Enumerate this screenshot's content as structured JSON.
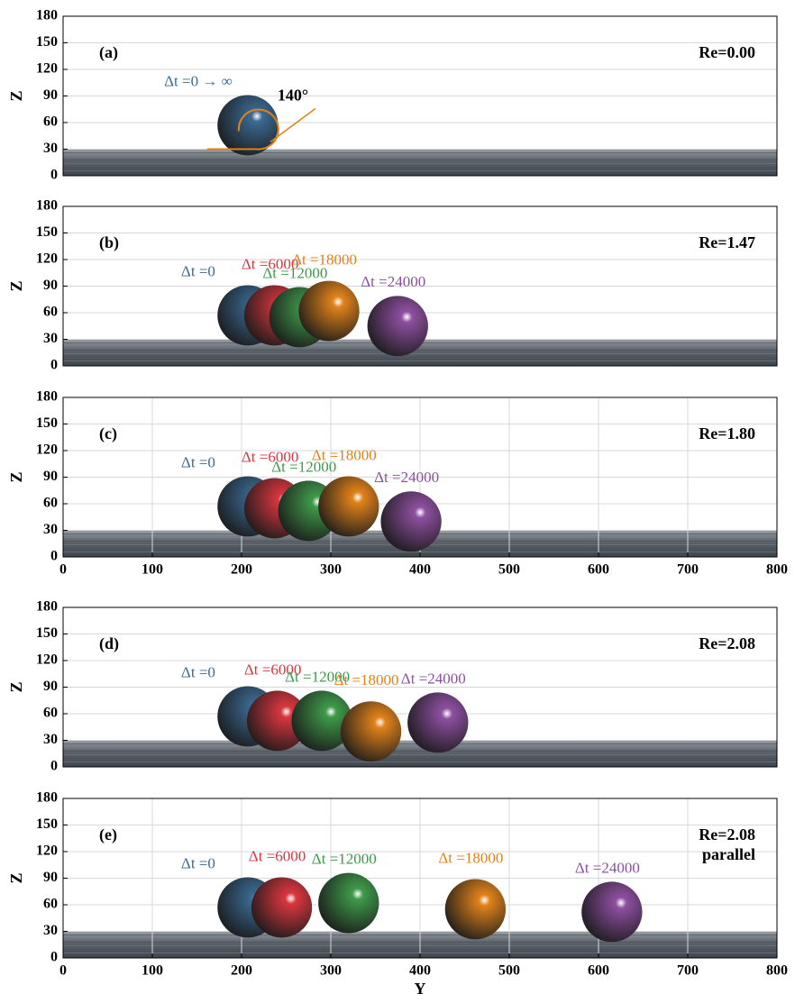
{
  "chart_data": [
    {
      "type": "scatter",
      "panel_label": "(a)",
      "annotations": [
        "Re=0.00"
      ],
      "angle_label": "140°",
      "y_label": "Z",
      "xlim": [
        0,
        800
      ],
      "ylim": [
        0,
        180
      ],
      "yticks": [
        0,
        30,
        60,
        90,
        120,
        150,
        180
      ],
      "grid": true,
      "series": [
        {
          "name": "Δt =0 → ∞",
          "color": "#3a6a92",
          "x": [
            207
          ],
          "values": [
            57
          ]
        }
      ]
    },
    {
      "type": "scatter",
      "panel_label": "(b)",
      "annotations": [
        "Re=1.47"
      ],
      "y_label": "Z",
      "xlim": [
        0,
        800
      ],
      "ylim": [
        0,
        180
      ],
      "yticks": [
        0,
        30,
        60,
        90,
        120,
        150,
        180
      ],
      "grid": true,
      "series": [
        {
          "name": "Δt =0",
          "color": "#3a6a92",
          "x": [
            207
          ],
          "values": [
            57
          ]
        },
        {
          "name": "Δt =6000",
          "color": "#d9363e",
          "x": [
            237
          ],
          "values": [
            57
          ]
        },
        {
          "name": "Δt =12000",
          "color": "#3e9a4a",
          "x": [
            265
          ],
          "values": [
            55
          ]
        },
        {
          "name": "Δt =18000",
          "color": "#e0821a",
          "x": [
            298
          ],
          "values": [
            62
          ]
        },
        {
          "name": "Δt =24000",
          "color": "#8e4fa0",
          "x": [
            375
          ],
          "values": [
            45
          ]
        }
      ]
    },
    {
      "type": "scatter",
      "panel_label": "(c)",
      "annotations": [
        "Re=1.80"
      ],
      "y_label": "Z",
      "xlim": [
        0,
        800
      ],
      "ylim": [
        0,
        180
      ],
      "yticks": [
        0,
        30,
        60,
        90,
        120,
        150,
        180
      ],
      "xticks": [
        0,
        100,
        200,
        300,
        400,
        500,
        600,
        700,
        800
      ],
      "grid": true,
      "series": [
        {
          "name": "Δt =0",
          "color": "#3a6a92",
          "x": [
            207
          ],
          "values": [
            57
          ]
        },
        {
          "name": "Δt =6000",
          "color": "#d9363e",
          "x": [
            237
          ],
          "values": [
            55
          ]
        },
        {
          "name": "Δt =12000",
          "color": "#3e9a4a",
          "x": [
            275
          ],
          "values": [
            52
          ]
        },
        {
          "name": "Δt =18000",
          "color": "#e0821a",
          "x": [
            320
          ],
          "values": [
            57
          ]
        },
        {
          "name": "Δt =24000",
          "color": "#8e4fa0",
          "x": [
            390
          ],
          "values": [
            40
          ]
        }
      ]
    },
    {
      "type": "scatter",
      "panel_label": "(d)",
      "annotations": [
        "Re=2.08"
      ],
      "y_label": "Z",
      "xlim": [
        0,
        800
      ],
      "ylim": [
        0,
        180
      ],
      "yticks": [
        0,
        30,
        60,
        90,
        120,
        150,
        180
      ],
      "grid": true,
      "series": [
        {
          "name": "Δt =0",
          "color": "#3a6a92",
          "x": [
            207
          ],
          "values": [
            57
          ]
        },
        {
          "name": "Δt =6000",
          "color": "#d9363e",
          "x": [
            240
          ],
          "values": [
            52
          ]
        },
        {
          "name": "Δt =12000",
          "color": "#3e9a4a",
          "x": [
            290
          ],
          "values": [
            52
          ]
        },
        {
          "name": "Δt =18000",
          "color": "#e0821a",
          "x": [
            345
          ],
          "values": [
            40
          ]
        },
        {
          "name": "Δt =24000",
          "color": "#8e4fa0",
          "x": [
            420
          ],
          "values": [
            50
          ]
        }
      ]
    },
    {
      "type": "scatter",
      "panel_label": "(e)",
      "annotations": [
        "Re=2.08",
        "parallel"
      ],
      "y_label": "Z",
      "x_label": "Y",
      "xlim": [
        0,
        800
      ],
      "ylim": [
        0,
        180
      ],
      "yticks": [
        0,
        30,
        60,
        90,
        120,
        150,
        180
      ],
      "xticks": [
        0,
        100,
        200,
        300,
        400,
        500,
        600,
        700,
        800
      ],
      "grid": true,
      "series": [
        {
          "name": "Δt =0",
          "color": "#3a6a92",
          "x": [
            207
          ],
          "values": [
            57
          ]
        },
        {
          "name": "Δt =6000",
          "color": "#d9363e",
          "x": [
            245
          ],
          "values": [
            57
          ]
        },
        {
          "name": "Δt =12000",
          "color": "#3e9a4a",
          "x": [
            320
          ],
          "values": [
            62
          ]
        },
        {
          "name": "Δt =18000",
          "color": "#e0821a",
          "x": [
            462
          ],
          "values": [
            55
          ]
        },
        {
          "name": "Δt =24000",
          "color": "#8e4fa0",
          "x": [
            615
          ],
          "values": [
            52
          ]
        }
      ]
    }
  ]
}
